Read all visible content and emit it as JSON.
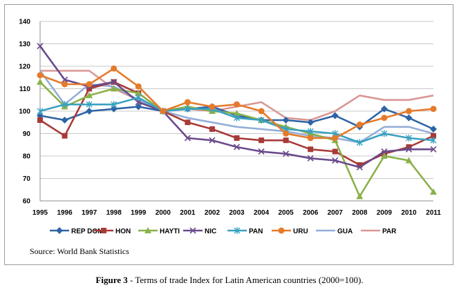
{
  "chart_data": {
    "type": "line",
    "title": "",
    "xlabel": "",
    "ylabel": "",
    "ylim": [
      60,
      140
    ],
    "yticks": [
      60,
      70,
      80,
      90,
      100,
      110,
      120,
      130,
      140
    ],
    "x": [
      "1995",
      "1996",
      "1997",
      "1998",
      "1999",
      "2000",
      "2001",
      "2002",
      "2003",
      "2004",
      "2005",
      "2006",
      "2007",
      "2008",
      "2009",
      "2010",
      "2011"
    ],
    "grid": "horizontal",
    "legend_position": "bottom",
    "series": [
      {
        "name": "REP DOM",
        "color": "#2e64a6",
        "marker": "diamond",
        "values": [
          98,
          96,
          100,
          101,
          102,
          100,
          101,
          102,
          98,
          96,
          96,
          95,
          98,
          93,
          101,
          97,
          92
        ]
      },
      {
        "name": "HON",
        "color": "#a83a37",
        "marker": "square",
        "values": [
          96,
          89,
          110,
          113,
          108,
          100,
          95,
          92,
          88,
          87,
          87,
          83,
          82,
          76,
          81,
          84,
          89
        ]
      },
      {
        "name": "HAYTI",
        "color": "#8ab14a",
        "marker": "triangle",
        "values": [
          113,
          102,
          107,
          110,
          108,
          100,
          102,
          100,
          99,
          96,
          93,
          90,
          87,
          62,
          80,
          78,
          64
        ]
      },
      {
        "name": "NIC",
        "color": "#6a4a8c",
        "marker": "x",
        "values": [
          129,
          114,
          111,
          113,
          104,
          100,
          88,
          87,
          84,
          82,
          81,
          79,
          78,
          75,
          82,
          83,
          83
        ]
      },
      {
        "name": "PAN",
        "color": "#3aa1c0",
        "marker": "star",
        "values": [
          100,
          103,
          103,
          103,
          106,
          100,
          101,
          101,
          97,
          96,
          92,
          91,
          90,
          86,
          90,
          88,
          87
        ]
      },
      {
        "name": "URU",
        "color": "#e57a2b",
        "marker": "circle",
        "values": [
          116,
          112,
          112,
          119,
          111,
          100,
          104,
          102,
          103,
          100,
          90,
          88,
          88,
          94,
          97,
          100,
          101
        ]
      },
      {
        "name": "GUA",
        "color": "#93aed8",
        "marker": "none",
        "values": [
          118,
          103,
          112,
          111,
          105,
          100,
          97,
          95,
          93,
          92,
          91,
          89,
          88,
          86,
          93,
          93,
          90
        ]
      },
      {
        "name": "PAR",
        "color": "#d99694",
        "marker": "none",
        "values": [
          118,
          118,
          118,
          110,
          105,
          100,
          101,
          100,
          102,
          104,
          97,
          96,
          100,
          107,
          105,
          105,
          107
        ]
      }
    ]
  },
  "source_text": "Source:  World Bank Statistics",
  "caption": {
    "label": "Figure 3",
    "text": " - Terms of trade Index for Latin American countries (2000=100)."
  }
}
